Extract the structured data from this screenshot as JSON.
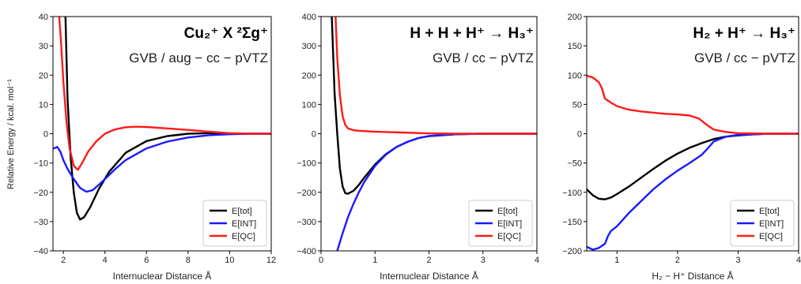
{
  "chart_data": [
    {
      "type": "line",
      "title": "Cu₂⁺ X ²Σg⁺",
      "subtitle": "GVB / aug − cc − pVTZ",
      "xlabel": "Internuclear Distance Å",
      "ylabel": "Relative Energy / kcal. mol⁻¹",
      "xlim": [
        1.5,
        12
      ],
      "ylim": [
        -40,
        40
      ],
      "xticks": [
        2,
        4,
        6,
        8,
        10,
        12
      ],
      "yticks": [
        -40,
        -30,
        -20,
        -10,
        0,
        10,
        20,
        30,
        40
      ],
      "legend": "bottom-right",
      "series": [
        {
          "name": "E[tot]",
          "color": "#000000",
          "x": [
            2.1,
            2.2,
            2.35,
            2.5,
            2.65,
            2.8,
            3.0,
            3.3,
            3.7,
            4.2,
            5.0,
            6.0,
            7.0,
            8.0,
            9.0,
            10.0,
            11.0,
            12.0
          ],
          "y": [
            40,
            12,
            -8,
            -20,
            -27,
            -29.3,
            -28.5,
            -25,
            -19,
            -13,
            -6.5,
            -2.5,
            -0.8,
            0,
            0.2,
            0.1,
            0,
            0
          ]
        },
        {
          "name": "E[INT]",
          "color": "#1a1aff",
          "x": [
            1.55,
            1.7,
            1.85,
            2.0,
            2.2,
            2.5,
            2.8,
            3.1,
            3.4,
            3.7,
            4.0,
            4.5,
            5.0,
            6.0,
            7.0,
            8.0,
            9.0,
            10.0,
            11.0,
            12.0
          ],
          "y": [
            -5,
            -4.5,
            -6,
            -9,
            -12,
            -15.5,
            -18.5,
            -19.8,
            -19.3,
            -17.5,
            -15.5,
            -12,
            -9,
            -5,
            -2.7,
            -1.3,
            -0.5,
            -0.2,
            0,
            0
          ]
        },
        {
          "name": "E[QC]",
          "color": "#ff1a1a",
          "x": [
            1.8,
            1.9,
            2.0,
            2.15,
            2.3,
            2.5,
            2.7,
            2.9,
            3.2,
            3.6,
            4.0,
            4.5,
            5.0,
            5.5,
            6.0,
            7.0,
            8.0,
            9.0,
            10.0,
            11.0,
            12.0
          ],
          "y": [
            40,
            30,
            18,
            4,
            -5,
            -11,
            -12.3,
            -10,
            -6,
            -2.5,
            0,
            1.5,
            2.2,
            2.4,
            2.3,
            1.8,
            1.3,
            0.7,
            0.2,
            0,
            0
          ]
        }
      ]
    },
    {
      "type": "line",
      "title": "H + H + H⁺ → H₃⁺",
      "subtitle": "GVB / cc − pVTZ",
      "xlabel": "Internuclear Distance Å",
      "ylabel": "",
      "xlim": [
        0,
        4
      ],
      "ylim": [
        -400,
        400
      ],
      "xticks": [
        0,
        1,
        2,
        3,
        4
      ],
      "yticks": [
        -400,
        -300,
        -200,
        -100,
        0,
        100,
        200,
        300,
        400
      ],
      "legend": "bottom-right",
      "series": [
        {
          "name": "E[tot]",
          "color": "#000000",
          "x": [
            0.2,
            0.25,
            0.3,
            0.35,
            0.4,
            0.45,
            0.5,
            0.6,
            0.7,
            0.8,
            1.0,
            1.2,
            1.4,
            1.6,
            1.8,
            2.0,
            2.5,
            3.0,
            3.5,
            4.0
          ],
          "y": [
            400,
            140,
            0,
            -120,
            -180,
            -203,
            -205,
            -195,
            -175,
            -150,
            -105,
            -70,
            -45,
            -28,
            -15,
            -8,
            -2,
            0,
            0,
            0
          ]
        },
        {
          "name": "E[INT]",
          "color": "#1a1aff",
          "x": [
            0.3,
            0.4,
            0.5,
            0.6,
            0.7,
            0.8,
            1.0,
            1.2,
            1.4,
            1.6,
            1.8,
            2.0,
            2.5,
            3.0,
            3.5,
            4.0
          ],
          "y": [
            -400,
            -340,
            -285,
            -240,
            -200,
            -165,
            -110,
            -72,
            -45,
            -28,
            -15,
            -8,
            -2,
            0,
            0,
            0
          ]
        },
        {
          "name": "E[QC]",
          "color": "#ff1a1a",
          "x": [
            0.27,
            0.3,
            0.35,
            0.4,
            0.45,
            0.5,
            0.6,
            0.7,
            0.8,
            1.0,
            1.5,
            2.0,
            2.5,
            3.0,
            3.5,
            4.0
          ],
          "y": [
            400,
            260,
            130,
            60,
            30,
            18,
            12,
            10,
            9,
            7,
            4,
            1,
            0,
            0,
            0,
            0
          ]
        }
      ]
    },
    {
      "type": "line",
      "title": "H₂ + H⁺ → H₃⁺",
      "subtitle": "GVB / cc − pVTZ",
      "xlabel": "H₂ − H⁺ Distance Å",
      "ylabel": "",
      "xlim": [
        0.5,
        4
      ],
      "ylim": [
        -200,
        200
      ],
      "xticks": [
        1,
        2,
        3,
        4
      ],
      "yticks": [
        -200,
        -150,
        -100,
        -50,
        0,
        50,
        100,
        150,
        200
      ],
      "legend": "bottom-right",
      "series": [
        {
          "name": "E[tot]",
          "color": "#000000",
          "x": [
            0.5,
            0.6,
            0.7,
            0.8,
            0.9,
            1.0,
            1.2,
            1.4,
            1.6,
            1.8,
            2.0,
            2.2,
            2.4,
            2.6,
            2.8,
            3.0,
            3.2,
            3.5,
            4.0
          ],
          "y": [
            -95,
            -105,
            -111,
            -112,
            -109,
            -103,
            -90,
            -75,
            -60,
            -46,
            -34,
            -24,
            -16,
            -9,
            -5,
            -3,
            -1.5,
            0,
            0
          ]
        },
        {
          "name": "E[INT]",
          "color": "#1a1aff",
          "x": [
            0.5,
            0.6,
            0.7,
            0.8,
            0.85,
            0.9,
            1.0,
            1.2,
            1.4,
            1.6,
            1.8,
            2.0,
            2.2,
            2.4,
            2.5,
            2.6,
            2.8,
            3.0,
            3.5,
            4.0
          ],
          "y": [
            -193,
            -198,
            -195,
            -188,
            -175,
            -166,
            -158,
            -135,
            -115,
            -95,
            -78,
            -63,
            -50,
            -36,
            -25,
            -13,
            -5,
            -2,
            0,
            0
          ]
        },
        {
          "name": "E[QC]",
          "color": "#ff1a1a",
          "x": [
            0.5,
            0.6,
            0.7,
            0.75,
            0.8,
            0.9,
            1.0,
            1.2,
            1.4,
            1.6,
            1.8,
            2.0,
            2.2,
            2.35,
            2.5,
            2.6,
            2.8,
            3.0,
            3.5,
            4.0
          ],
          "y": [
            99,
            96,
            88,
            78,
            60,
            53,
            47,
            41,
            38,
            36,
            34,
            33,
            31,
            26,
            14,
            7,
            3,
            1,
            0,
            0
          ]
        }
      ]
    }
  ]
}
